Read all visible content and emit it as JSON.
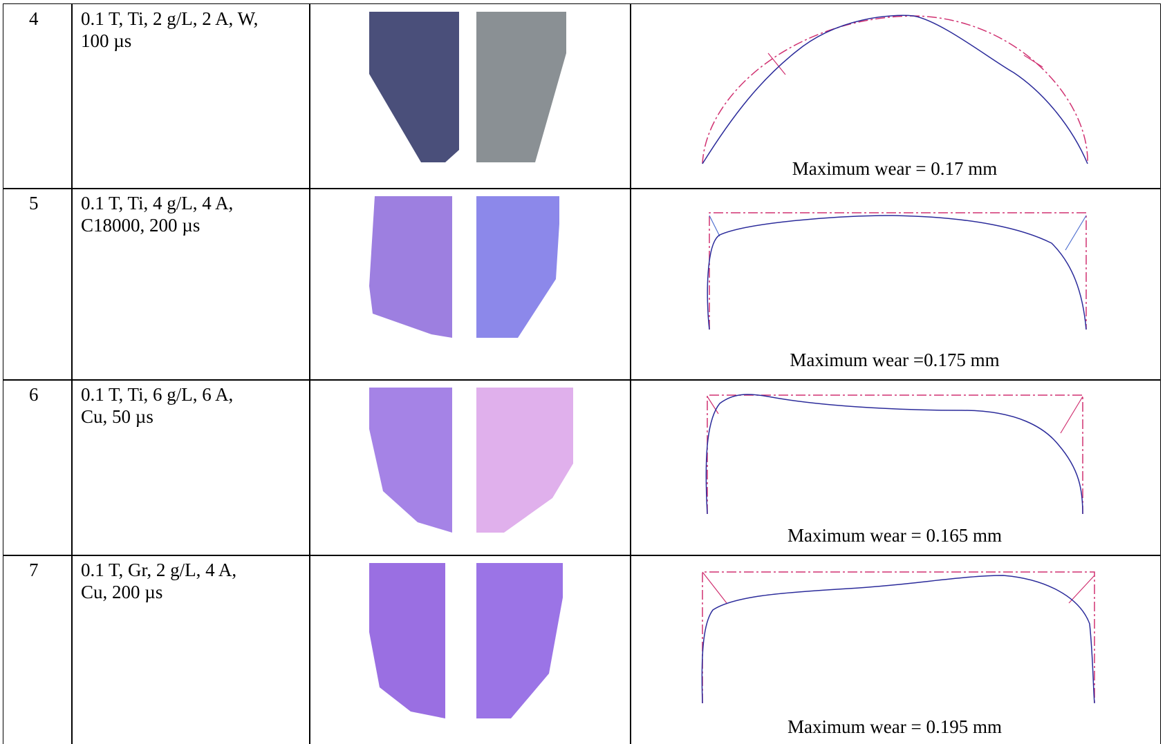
{
  "table": {
    "rows": [
      {
        "no": "4",
        "conditions": [
          "0.1 T, Ti, 2 g/L, 2 A, W,",
          "100 µs"
        ],
        "wear": "Maximum wear = 0.17 mm"
      },
      {
        "no": "5",
        "conditions": [
          "0.1 T, Ti, 4 g/L, 4 A,",
          "C18000, 200 µs"
        ],
        "wear": "Maximum wear =0.175 mm"
      },
      {
        "no": "6",
        "conditions": [
          "0.1 T, Ti, 6 g/L, 6 A,",
          "Cu, 50 µs"
        ],
        "wear": "Maximum wear = 0.165 mm"
      },
      {
        "no": "7",
        "conditions": [
          "0.1 T, Gr, 2 g/L, 4 A,",
          "Cu, 200 µs"
        ],
        "wear": "Maximum wear = 0.195 mm"
      }
    ]
  }
}
